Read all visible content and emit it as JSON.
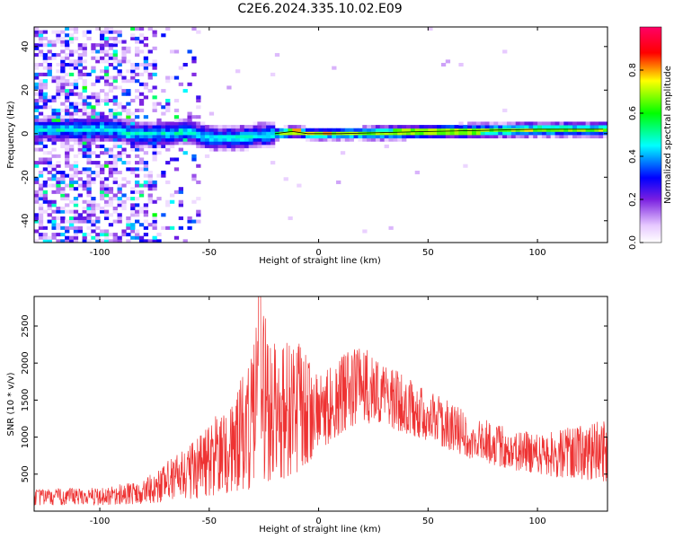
{
  "title": "C2E6.2024.335.10.02.E09",
  "chart_data": [
    {
      "type": "heatmap",
      "xlabel": "Height of straight line (km)",
      "ylabel": "Frequency (Hz)",
      "xlim": [
        -130,
        132
      ],
      "ylim": [
        -50,
        49
      ],
      "x_ticks": [
        -100,
        -50,
        0,
        50,
        100
      ],
      "y_ticks": [
        -40,
        -20,
        0,
        20,
        40
      ],
      "colorbar": {
        "label": "Normalized spectral amplitude",
        "range": [
          0,
          1
        ],
        "ticks": [
          0.0,
          0.2,
          0.4,
          0.6,
          0.8
        ],
        "tick_labels": [
          "0.0",
          "0.2",
          "0.4",
          "0.6",
          "0.8"
        ],
        "colors": [
          "#ffffff",
          "#8a2be2",
          "#0000ff",
          "#00ffff",
          "#00ff00",
          "#ffff00",
          "#ff0000",
          "#ff0066"
        ]
      },
      "ridge": [
        {
          "x": -95,
          "y": 2
        },
        {
          "x": -85,
          "y": 0
        },
        {
          "x": -70,
          "y": 0
        },
        {
          "x": -60,
          "y": 1
        },
        {
          "x": -50,
          "y": -2
        },
        {
          "x": -40,
          "y": -2
        },
        {
          "x": -30,
          "y": -1
        },
        {
          "x": -20,
          "y": 0
        },
        {
          "x": -12,
          "y": 1
        },
        {
          "x": -5,
          "y": 0
        },
        {
          "x": 10,
          "y": 0
        },
        {
          "x": 50,
          "y": 1
        },
        {
          "x": 100,
          "y": 2
        },
        {
          "x": 130,
          "y": 2
        }
      ],
      "noise_region": {
        "x": [
          -130,
          -55
        ],
        "y": [
          -50,
          49
        ]
      },
      "peaks": [
        {
          "x": -11,
          "y": 2,
          "amplitude": 0.95
        },
        {
          "x": -5,
          "y": 0,
          "amplitude": 0.9
        },
        {
          "x": 3,
          "y": 0,
          "amplitude": 0.95
        },
        {
          "x": 15,
          "y": 0,
          "amplitude": 0.85
        },
        {
          "x": 95,
          "y": 2,
          "amplitude": 0.9
        },
        {
          "x": 128,
          "y": 2,
          "amplitude": 0.8
        }
      ]
    },
    {
      "type": "line",
      "xlabel": "Height of straight line (km)",
      "ylabel": "SNR (10 * v/v)",
      "xlim": [
        -130,
        132
      ],
      "ylim": [
        0,
        2900
      ],
      "x_ticks": [
        -100,
        -50,
        0,
        50,
        100
      ],
      "y_ticks": [
        500,
        1000,
        1500,
        2000,
        2500
      ],
      "color": "#ee3333",
      "envelope": [
        {
          "x": -130,
          "low": 80,
          "high": 300
        },
        {
          "x": -100,
          "low": 80,
          "high": 320
        },
        {
          "x": -80,
          "low": 100,
          "high": 420
        },
        {
          "x": -60,
          "low": 150,
          "high": 900
        },
        {
          "x": -50,
          "low": 200,
          "high": 1200
        },
        {
          "x": -40,
          "low": 250,
          "high": 1500
        },
        {
          "x": -30,
          "low": 300,
          "high": 2200
        },
        {
          "x": -27,
          "low": 300,
          "high": 2900
        },
        {
          "x": -20,
          "low": 400,
          "high": 2300
        },
        {
          "x": -10,
          "low": 500,
          "high": 2350
        },
        {
          "x": 0,
          "low": 800,
          "high": 1800
        },
        {
          "x": 10,
          "low": 1050,
          "high": 2100
        },
        {
          "x": 20,
          "low": 1200,
          "high": 2250
        },
        {
          "x": 30,
          "low": 1150,
          "high": 2000
        },
        {
          "x": 50,
          "low": 950,
          "high": 1650
        },
        {
          "x": 70,
          "low": 700,
          "high": 1300
        },
        {
          "x": 90,
          "low": 550,
          "high": 1100
        },
        {
          "x": 110,
          "low": 450,
          "high": 1100
        },
        {
          "x": 132,
          "low": 400,
          "high": 1250
        }
      ]
    }
  ]
}
